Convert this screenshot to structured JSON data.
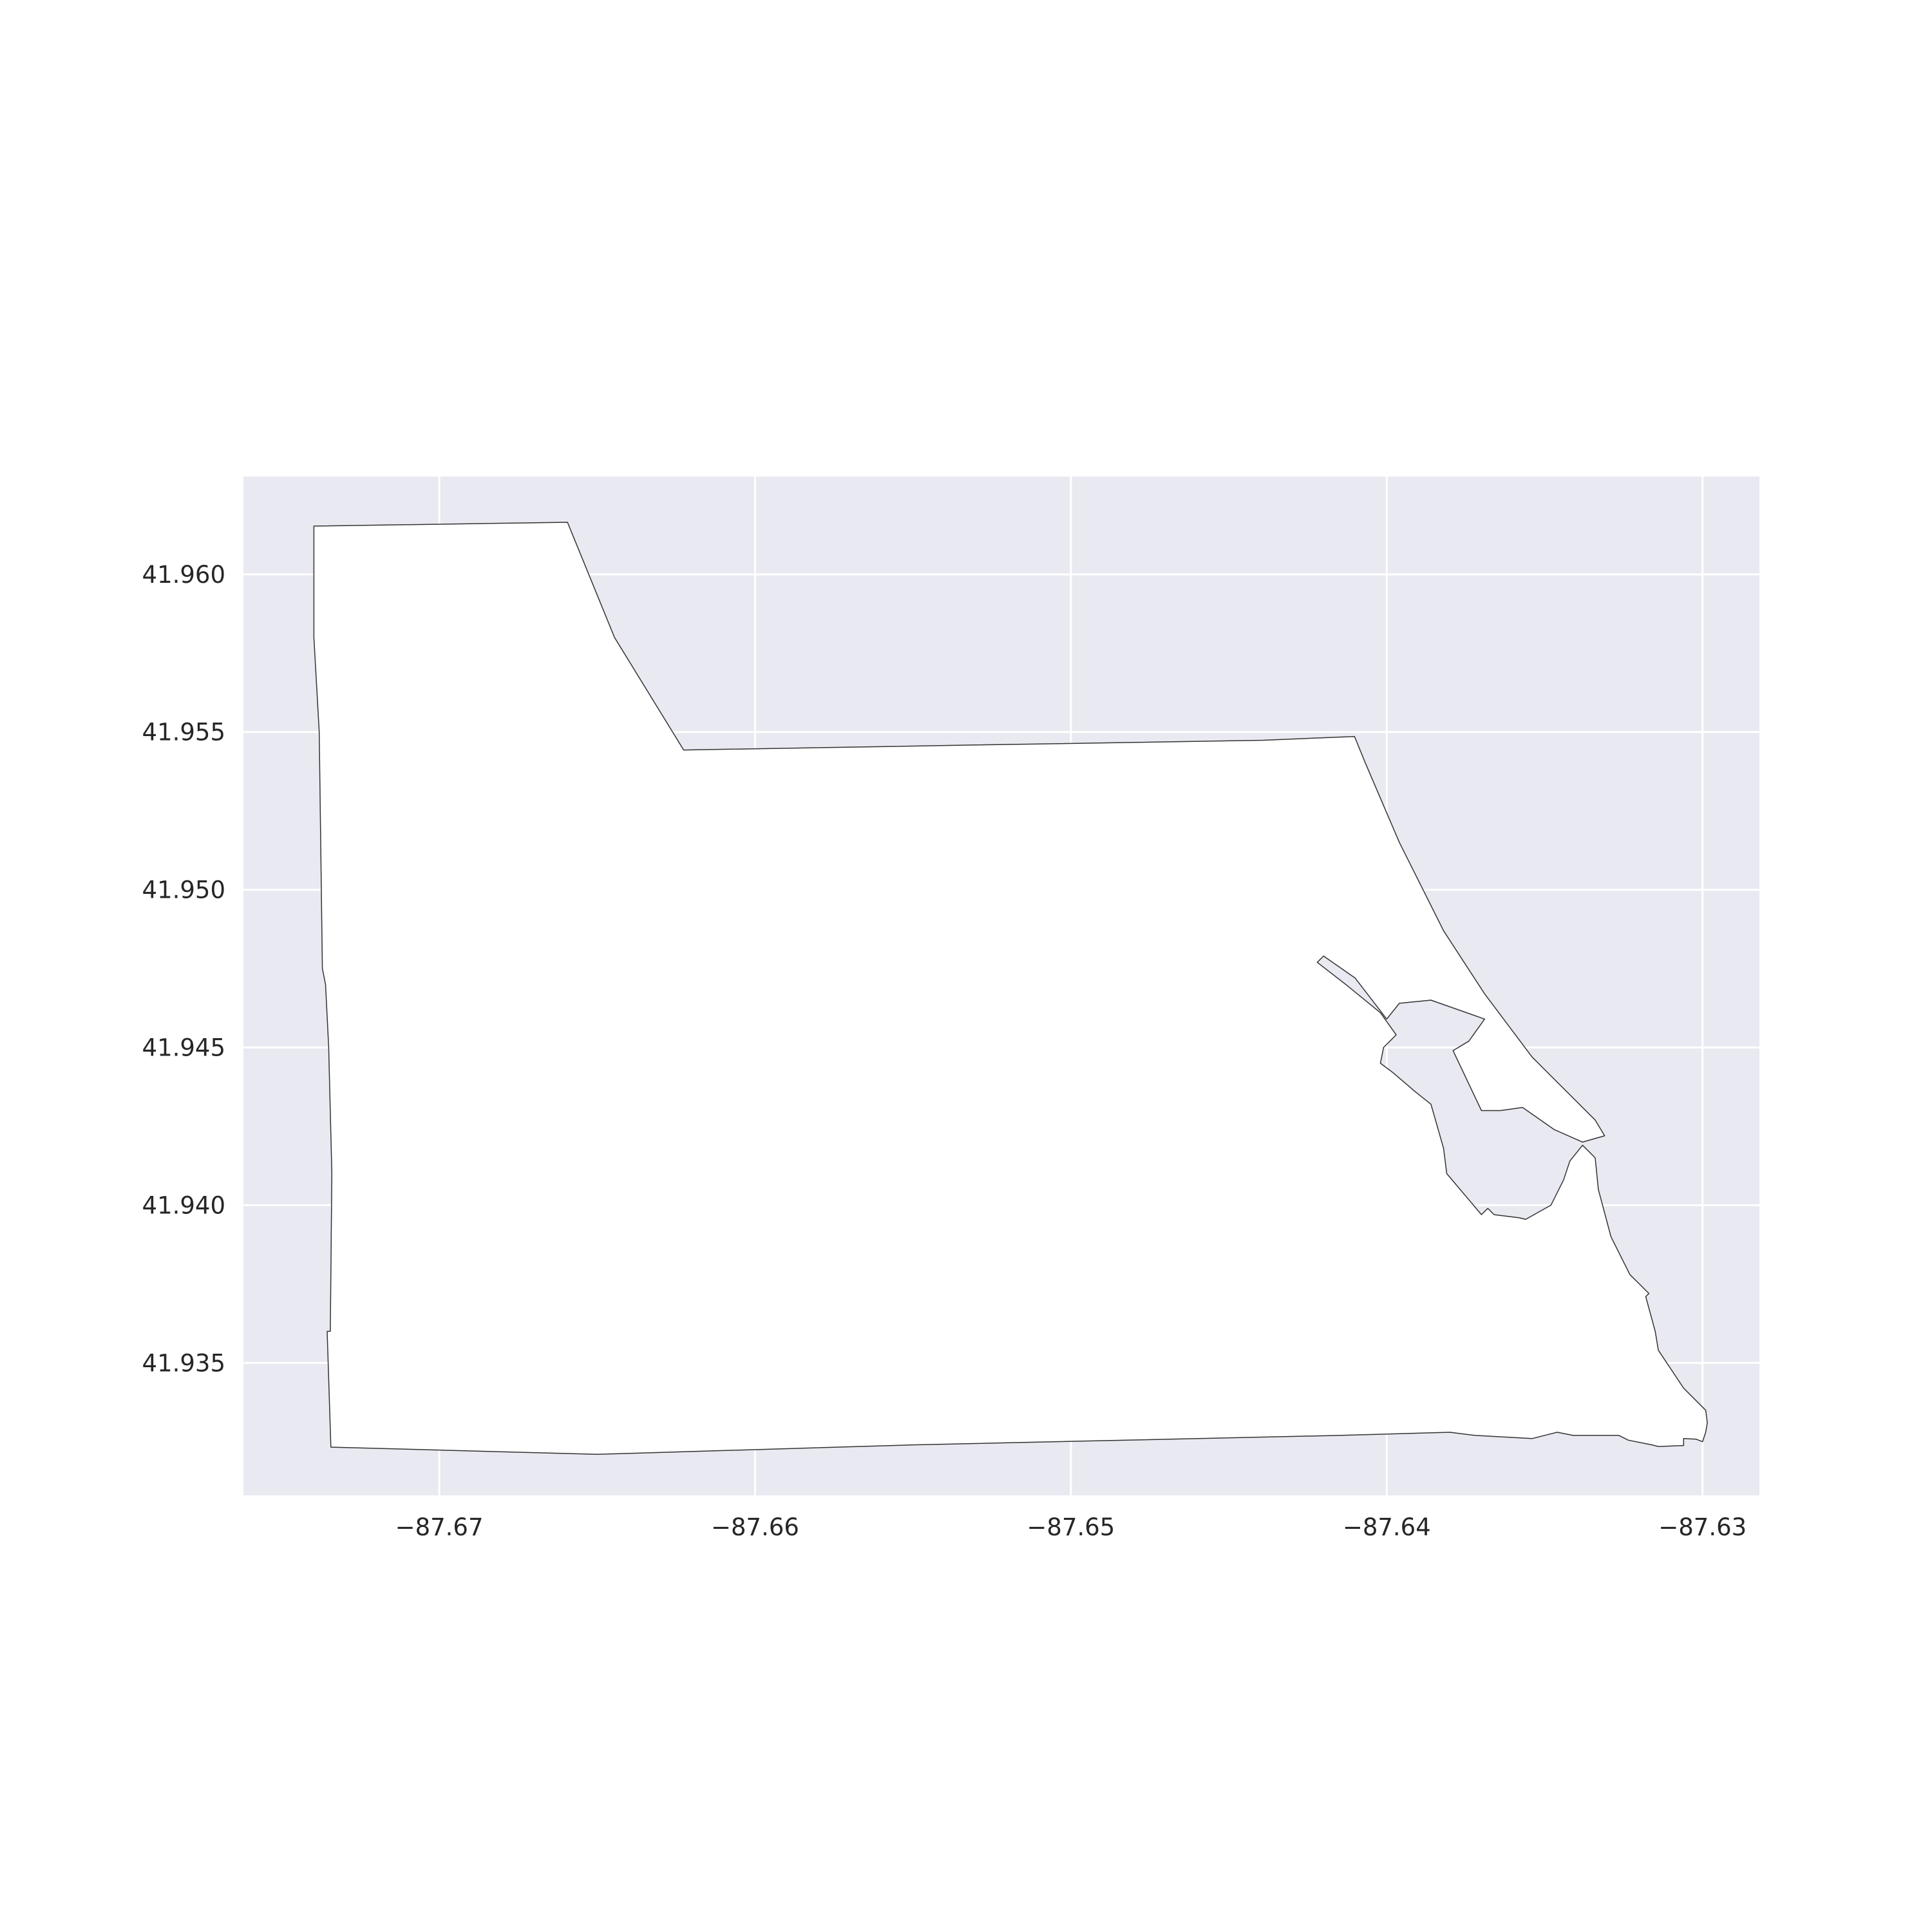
{
  "chart_data": {
    "type": "map",
    "title": "",
    "xlabel": "",
    "ylabel": "",
    "xlim": [
      -87.6762,
      -87.6282
    ],
    "ylim": [
      41.9308,
      41.9631
    ],
    "grid": true,
    "xticks": [
      -87.67,
      -87.66,
      -87.65,
      -87.64,
      -87.63
    ],
    "xtick_labels": [
      "−87.67",
      "−87.66",
      "−87.65",
      "−87.64",
      "−87.63"
    ],
    "yticks": [
      41.96,
      41.955,
      41.95,
      41.945,
      41.94,
      41.935
    ],
    "ytick_labels": [
      "41.960",
      "41.955",
      "41.950",
      "41.945",
      "41.940",
      "41.935"
    ],
    "colors": {
      "panel": "#e9e9f1",
      "grid": "#ffffff",
      "fill": "#ffffff",
      "edge": "#333333"
    },
    "polygon": [
      [
        -87.67397,
        41.96153
      ],
      [
        -87.66594,
        41.96165
      ],
      [
        -87.66445,
        41.958
      ],
      [
        -87.66226,
        41.95443
      ],
      [
        -87.653,
        41.95459
      ],
      [
        -87.64393,
        41.95474
      ],
      [
        -87.64102,
        41.95486
      ],
      [
        -87.64067,
        41.954
      ],
      [
        -87.6396,
        41.9515
      ],
      [
        -87.6382,
        41.9487
      ],
      [
        -87.6369,
        41.9467
      ],
      [
        -87.6354,
        41.9447
      ],
      [
        -87.6334,
        41.9427
      ],
      [
        -87.6331,
        41.9422
      ],
      [
        -87.6338,
        41.942
      ],
      [
        -87.6347,
        41.9424
      ],
      [
        -87.6357,
        41.9431
      ],
      [
        -87.6364,
        41.943
      ],
      [
        -87.637,
        41.943
      ],
      [
        -87.6379,
        41.9449
      ],
      [
        -87.6374,
        41.9452
      ],
      [
        -87.6369,
        41.9459
      ],
      [
        -87.6386,
        41.9465
      ],
      [
        -87.6396,
        41.9464
      ],
      [
        -87.64,
        41.9459
      ],
      [
        -87.641,
        41.9472
      ],
      [
        -87.642,
        41.9479
      ],
      [
        -87.6422,
        41.9477
      ],
      [
        -87.6413,
        41.947
      ],
      [
        -87.6402,
        41.9461
      ],
      [
        -87.6397,
        41.9454
      ],
      [
        -87.6401,
        41.945
      ],
      [
        -87.6402,
        41.9445
      ],
      [
        -87.6398,
        41.9442
      ],
      [
        -87.6391,
        41.9436
      ],
      [
        -87.6386,
        41.9432
      ],
      [
        -87.6382,
        41.9418
      ],
      [
        -87.6381,
        41.941
      ],
      [
        -87.637,
        41.9397
      ],
      [
        -87.6368,
        41.9399
      ],
      [
        -87.6366,
        41.9397
      ],
      [
        -87.6358,
        41.9396
      ],
      [
        -87.6356,
        41.93955
      ],
      [
        -87.6348,
        41.94
      ],
      [
        -87.6344,
        41.9408
      ],
      [
        -87.6342,
        41.9414
      ],
      [
        -87.6338,
        41.9419
      ],
      [
        -87.6334,
        41.9415
      ],
      [
        -87.6333,
        41.9405
      ],
      [
        -87.6329,
        41.939
      ],
      [
        -87.6323,
        41.9378
      ],
      [
        -87.6317,
        41.9372
      ],
      [
        -87.6318,
        41.9371
      ],
      [
        -87.6315,
        41.936
      ],
      [
        -87.6314,
        41.9354
      ],
      [
        -87.6306,
        41.9342
      ],
      [
        -87.6299,
        41.9335
      ],
      [
        -87.62985,
        41.9331
      ],
      [
        -87.6299,
        41.9328
      ],
      [
        -87.63,
        41.9325
      ],
      [
        -87.6302,
        41.93258
      ],
      [
        -87.6306,
        41.9326
      ],
      [
        -87.6306,
        41.93238
      ],
      [
        -87.6314,
        41.93235
      ],
      [
        -87.6316,
        41.9324
      ],
      [
        -87.63235,
        41.93255
      ],
      [
        -87.63265,
        41.9327
      ],
      [
        -87.6341,
        41.9327
      ],
      [
        -87.6346,
        41.9328
      ],
      [
        -87.6354,
        41.9326
      ],
      [
        -87.6372,
        41.9327
      ],
      [
        -87.638,
        41.9328
      ],
      [
        -87.6415,
        41.9327
      ],
      [
        -87.655,
        41.9324
      ],
      [
        -87.665,
        41.9321
      ],
      [
        -87.67343,
        41.93233
      ],
      [
        -87.67355,
        41.936
      ],
      [
        -87.67345,
        41.936
      ],
      [
        -87.6734,
        41.941
      ],
      [
        -87.6735,
        41.945
      ],
      [
        -87.6736,
        41.947
      ],
      [
        -87.6737,
        41.9475
      ],
      [
        -87.6738,
        41.955
      ],
      [
        -87.67397,
        41.958
      ],
      [
        -87.67397,
        41.96153
      ]
    ]
  }
}
